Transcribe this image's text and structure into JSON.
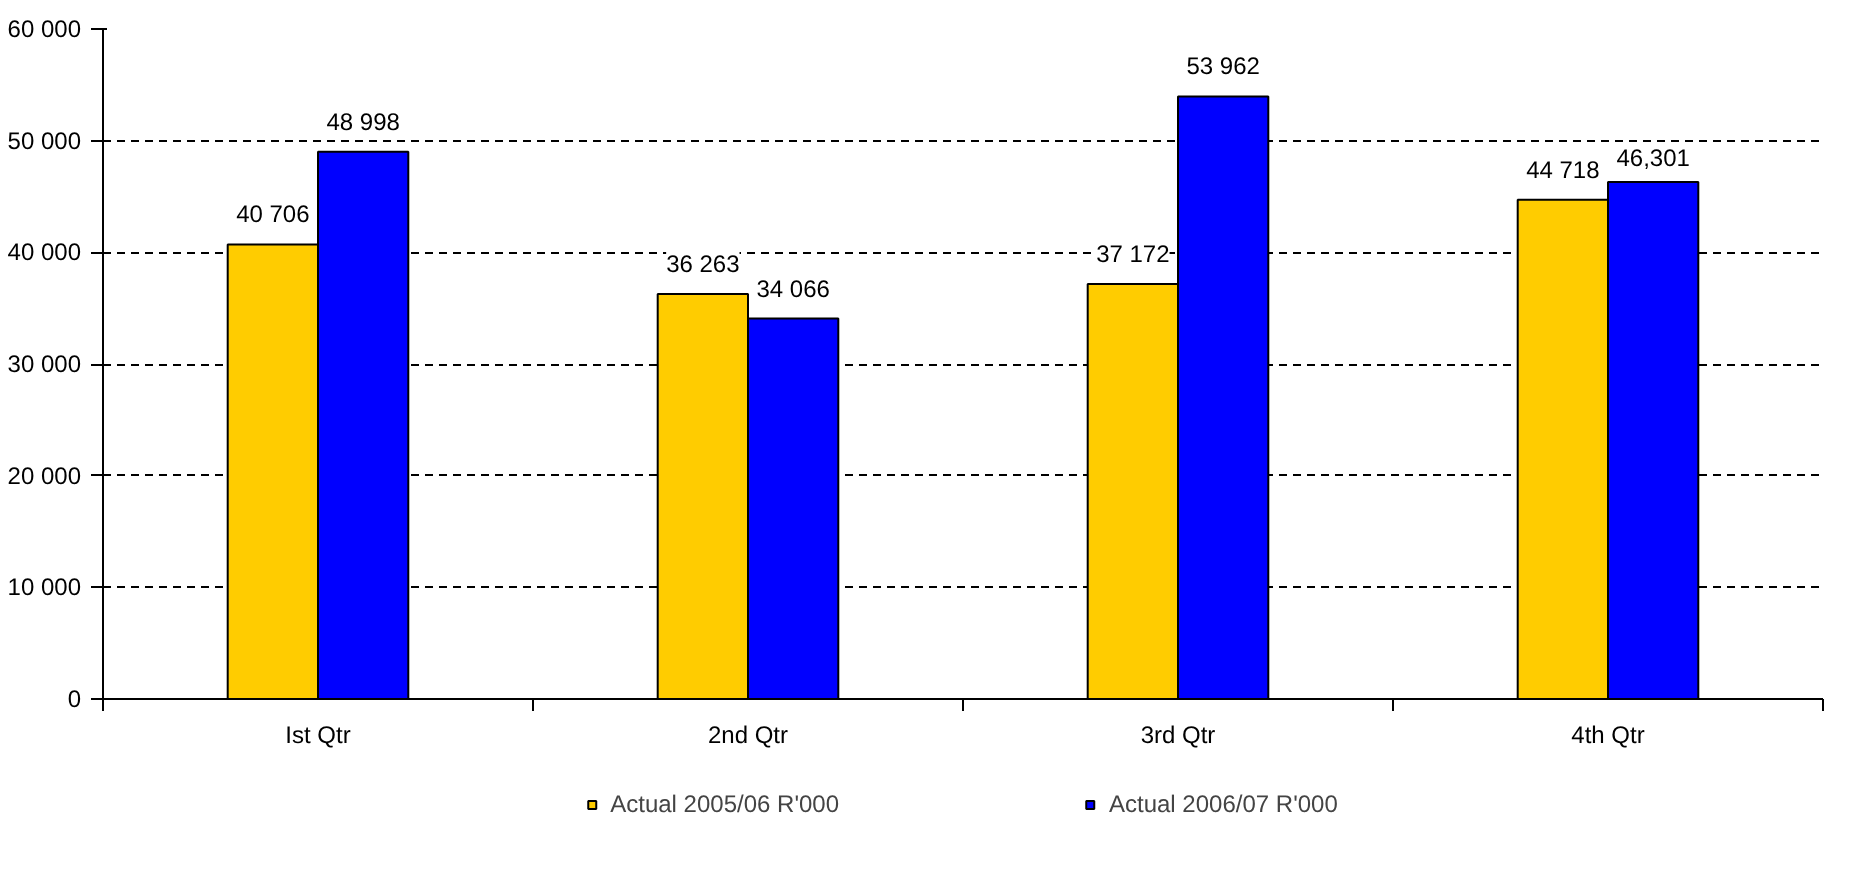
{
  "chart_data": {
    "type": "bar",
    "categories": [
      "Ist Qtr",
      "2nd Qtr",
      "3rd Qtr",
      "4th Qtr"
    ],
    "series": [
      {
        "name": "Actual 2005/06 R'000",
        "color": "#ffcc00",
        "values": [
          40706,
          36263,
          37172,
          44718
        ],
        "value_labels": [
          "40 706",
          "36 263",
          "37 172",
          "44 718"
        ]
      },
      {
        "name": "Actual 2006/07 R'000",
        "color": "#0000ff",
        "values": [
          48998,
          34066,
          53962,
          46301
        ],
        "value_labels": [
          "48 998",
          "34 066",
          "53 962",
          "46,301"
        ]
      }
    ],
    "ylim": [
      0,
      60000
    ],
    "yticks": [
      0,
      {
        "value": 10000,
        "label": "10 000"
      },
      {
        "value": 20000,
        "label": "20 000"
      },
      {
        "value": 30000,
        "label": "30 000"
      },
      {
        "value": 40000,
        "label": "40 000"
      },
      {
        "value": 50000,
        "label": "50 000"
      },
      {
        "value": 60000,
        "label": "60 000"
      }
    ],
    "grid": "y",
    "line_style": "dashed",
    "legend": "bottom"
  }
}
